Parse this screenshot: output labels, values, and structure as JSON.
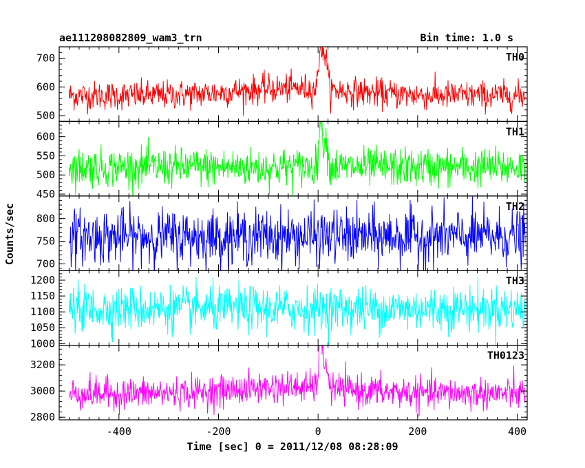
{
  "header": {
    "title": "ae111208082809_wam3_trn",
    "bin_time": "Bin time: 1.0 s"
  },
  "chart_data": {
    "type": "line",
    "title": "ae111208082809_wam3_trn",
    "subtitle": "Bin time: 1.0 s",
    "xlabel": "Time [sec] 0 = 2011/12/08 08:28:09",
    "ylabel": "Counts/sec",
    "xlim": [
      -520,
      420
    ],
    "x_range": [
      -500,
      416
    ],
    "x_step": 1,
    "xticks": [
      -400,
      -200,
      0,
      200,
      400
    ],
    "grid": false,
    "panels": [
      {
        "name": "TH0",
        "color": "#ff0000",
        "ylim": [
          480,
          740
        ],
        "yticks": [
          500,
          600,
          700
        ],
        "baseline": 570,
        "noise": 25,
        "start_value": 560,
        "end_value": 565,
        "features": [
          {
            "x": 5,
            "peak_value": 730
          },
          {
            "x": 15,
            "peak_value": 700
          },
          {
            "x": -50,
            "level": 595
          }
        ]
      },
      {
        "name": "TH1",
        "color": "#00ff00",
        "ylim": [
          445,
          640
        ],
        "yticks": [
          450,
          500,
          550,
          600
        ],
        "baseline": 520,
        "noise": 25,
        "start_value": 520,
        "end_value": 530,
        "features": [
          {
            "x": 5,
            "peak_value": 640
          },
          {
            "x": 15,
            "peak_value": 600
          }
        ]
      },
      {
        "name": "TH2",
        "color": "#0000ff",
        "ylim": [
          685,
          850
        ],
        "yticks": [
          700,
          750,
          800
        ],
        "baseline": 760,
        "noise": 30,
        "start_value": 750,
        "end_value": 745,
        "features": []
      },
      {
        "name": "TH3",
        "color": "#00ffff",
        "ylim": [
          995,
          1230
        ],
        "yticks": [
          1000,
          1050,
          1100,
          1150,
          1200
        ],
        "baseline": 1110,
        "noise": 35,
        "start_value": 1100,
        "end_value": 1100,
        "features": []
      },
      {
        "name": "TH0123",
        "color": "#ff00ff",
        "ylim": [
          2780,
          3350
        ],
        "yticks": [
          2800,
          3000,
          3200
        ],
        "baseline": 2980,
        "noise": 60,
        "start_value": 2950,
        "end_value": 2960,
        "features": [
          {
            "x": 5,
            "peak_value": 3350
          },
          {
            "x": 15,
            "peak_value": 3200
          },
          {
            "x": -50,
            "level": 3030
          }
        ]
      }
    ]
  }
}
